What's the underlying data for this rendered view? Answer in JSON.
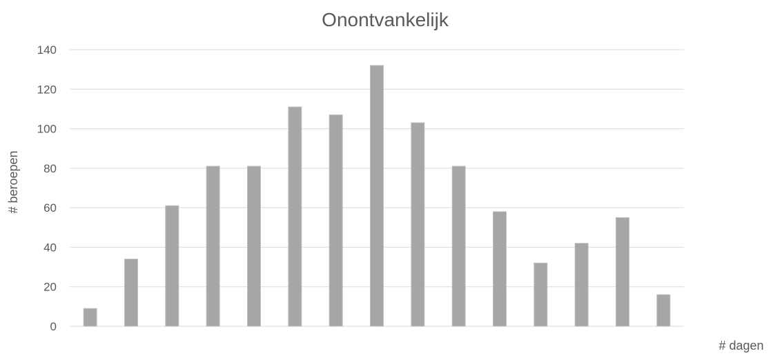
{
  "chart_data": {
    "type": "bar",
    "title": "Onontvankelijk",
    "xlabel": "# dagen",
    "ylabel": "# beroepen",
    "ylim": [
      0,
      140
    ],
    "yticks": [
      0,
      20,
      40,
      60,
      80,
      100,
      120,
      140
    ],
    "grid": true,
    "values": [
      9,
      34,
      61,
      81,
      81,
      111,
      107,
      132,
      103,
      81,
      58,
      32,
      42,
      55,
      16
    ],
    "colors": {
      "bar": "#a6a6a6",
      "bar_edge": "#bfbfbf",
      "grid": "#d9d9d9",
      "text": "#595959"
    }
  }
}
